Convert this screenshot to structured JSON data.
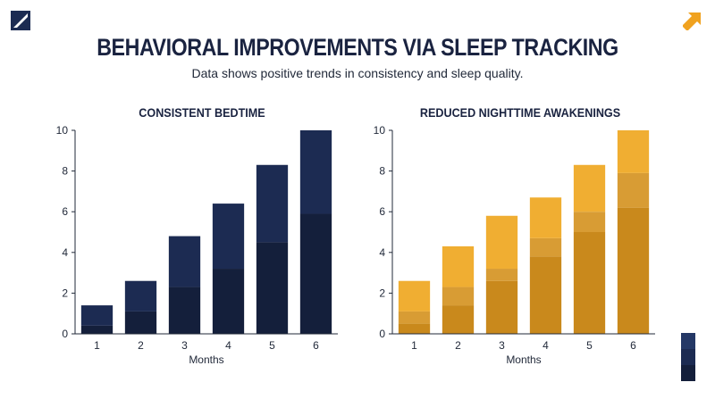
{
  "header": {
    "title": "BEHAVIORAL IMPROVEMENTS VIA SLEEP TRACKING",
    "subtitle": "Data shows positive trends in consistency and sleep quality."
  },
  "icons": {
    "logo": "slash-logo-icon",
    "corner": "arrow-up-right-icon"
  },
  "colors": {
    "navy_dark": "#141f3b",
    "navy_mid": "#1c2b52",
    "navy_light": "#243866",
    "gold_dark": "#c9891c",
    "gold_mid": "#d89c34",
    "gold_light": "#f0ae32",
    "accent": "#f0a21f"
  },
  "chart_data": [
    {
      "type": "bar",
      "stacked": true,
      "title": "CONSISTENT BEDTIME",
      "xlabel": "Months",
      "ylabel": "",
      "categories": [
        "1",
        "2",
        "3",
        "4",
        "5",
        "6"
      ],
      "ylim": [
        0,
        10
      ],
      "yticks": [
        "0",
        "2",
        "4",
        "6",
        "8",
        "10"
      ],
      "series": [
        {
          "values": [
            0.4,
            1.1,
            2.3,
            3.2,
            4.5,
            5.9
          ]
        },
        {
          "values": [
            1.0,
            1.5,
            2.5,
            3.2,
            3.8,
            4.1
          ]
        }
      ],
      "grid": false,
      "legend": "none"
    },
    {
      "type": "bar",
      "stacked": true,
      "title": "REDUCED NIGHTTIME AWAKENINGS",
      "xlabel": "Months",
      "ylabel": "",
      "categories": [
        "1",
        "2",
        "3",
        "4",
        "5",
        "6"
      ],
      "ylim": [
        0,
        10
      ],
      "yticks": [
        "0",
        "2",
        "4",
        "6",
        "8",
        "10"
      ],
      "series": [
        {
          "values": [
            0.5,
            1.4,
            2.6,
            3.8,
            5.0,
            6.2
          ]
        },
        {
          "values": [
            0.6,
            0.9,
            0.6,
            0.9,
            1.0,
            1.7
          ]
        },
        {
          "values": [
            1.5,
            2.0,
            2.6,
            2.0,
            2.3,
            2.1
          ]
        }
      ],
      "grid": false,
      "legend": "none"
    }
  ]
}
